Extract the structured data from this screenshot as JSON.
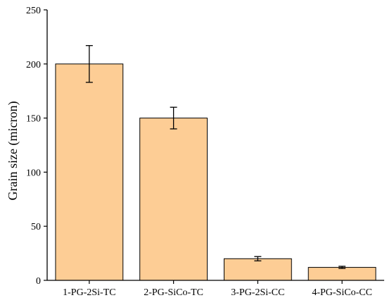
{
  "chart_data": {
    "type": "bar",
    "title": "",
    "xlabel": "",
    "ylabel": "Grain size (micron)",
    "ylim": [
      0,
      250
    ],
    "yticks": [
      "0",
      "50",
      "100",
      "150",
      "200",
      "250"
    ],
    "categories": [
      "1-PG-2Si-TC",
      "2-PG-SiCo-TC",
      "3-PG-2Si-CC",
      "4-PG-SiCo-CC"
    ],
    "values": [
      200,
      150,
      20,
      12
    ],
    "error_low": [
      183,
      140,
      18,
      11
    ],
    "error_high": [
      217,
      160,
      22,
      13
    ],
    "grid": false,
    "colors": {
      "bar_fill": "#FDCD95",
      "bar_stroke": "#000000"
    }
  }
}
